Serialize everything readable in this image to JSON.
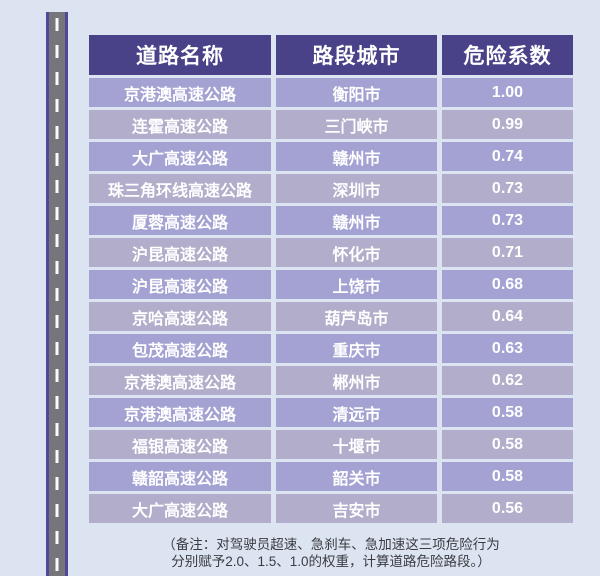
{
  "colors": {
    "background": "#dce3f1",
    "header_bg": "#4a4289",
    "row_odd_bg": "#a3a2d3",
    "row_even_bg": "#b2adca",
    "cell_text": "#ffffff",
    "note_text": "#3b3c42",
    "road_asphalt": "#76757c",
    "road_edge": "#51489a",
    "road_dash": "#fafafa"
  },
  "road_graphic": "vertical-road-with-dashed-center-line",
  "table": {
    "columns": [
      "道路名称",
      "路段城市",
      "危险系数"
    ],
    "rows": [
      {
        "road": "京港澳高速公路",
        "city": "衡阳市",
        "coefficient": "1.00"
      },
      {
        "road": "连霍高速公路",
        "city": "三门峡市",
        "coefficient": "0.99"
      },
      {
        "road": "大广高速公路",
        "city": "赣州市",
        "coefficient": "0.74"
      },
      {
        "road": "珠三角环线高速公路",
        "city": "深圳市",
        "coefficient": "0.73"
      },
      {
        "road": "厦蓉高速公路",
        "city": "赣州市",
        "coefficient": "0.73"
      },
      {
        "road": "沪昆高速公路",
        "city": "怀化市",
        "coefficient": "0.71"
      },
      {
        "road": "沪昆高速公路",
        "city": "上饶市",
        "coefficient": "0.68"
      },
      {
        "road": "京哈高速公路",
        "city": "葫芦岛市",
        "coefficient": "0.64"
      },
      {
        "road": "包茂高速公路",
        "city": "重庆市",
        "coefficient": "0.63"
      },
      {
        "road": "京港澳高速公路",
        "city": "郴州市",
        "coefficient": "0.62"
      },
      {
        "road": "京港澳高速公路",
        "city": "清远市",
        "coefficient": "0.58"
      },
      {
        "road": "福银高速公路",
        "city": "十堰市",
        "coefficient": "0.58"
      },
      {
        "road": "赣韶高速公路",
        "city": "韶关市",
        "coefficient": "0.58"
      },
      {
        "road": "大广高速公路",
        "city": "吉安市",
        "coefficient": "0.56"
      }
    ]
  },
  "note": {
    "line1": "（备注：对驾驶员超速、急刹车、急加速这三项危险行为",
    "line2": "分别赋予2.0、1.5、1.0的权重，计算道路危险路段。）"
  }
}
